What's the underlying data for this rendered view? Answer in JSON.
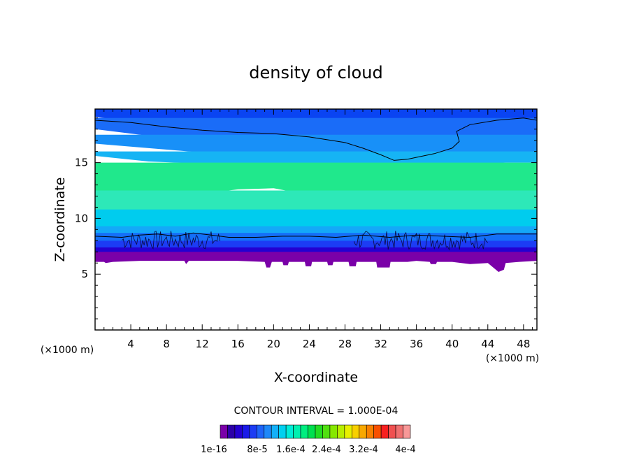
{
  "chart_data": {
    "type": "heatmap",
    "title": "density of cloud",
    "xlabel": "X-coordinate",
    "ylabel": "Z-coordinate",
    "x_units": "(×1000 m)",
    "x_units_right": "(×1000 m)",
    "xlim": [
      0,
      49.5
    ],
    "ylim": [
      0,
      19.8
    ],
    "x_ticks": [
      4,
      8,
      12,
      16,
      20,
      24,
      28,
      32,
      36,
      40,
      44,
      48
    ],
    "y_ticks": [
      5,
      10,
      15
    ],
    "contour_interval_label": "CONTOUR INTERVAL = 1.000E-04",
    "colorbar": {
      "colors": [
        "#7a00a8",
        "#2c00a8",
        "#2400d0",
        "#1a1ae8",
        "#1c3cf4",
        "#1e64f8",
        "#1e88f8",
        "#14b0f8",
        "#00d0f0",
        "#00ecd8",
        "#00f0b0",
        "#00ee80",
        "#00e050",
        "#22dc22",
        "#50e010",
        "#86e800",
        "#b8ee00",
        "#e8f000",
        "#f8d000",
        "#f8a800",
        "#f88000",
        "#f85000",
        "#f82020",
        "#f05050",
        "#f07070",
        "#f89898"
      ],
      "labels": [
        "1e-16",
        "8e-5",
        "1.6e-4",
        "2.4e-4",
        "3.2e-4",
        "4e-4"
      ]
    },
    "layers": [
      {
        "z_top": 20.0,
        "color": "#0a2ce8",
        "boundary": [
          [
            0,
            19.8
          ],
          [
            10,
            19.9
          ],
          [
            20,
            19.8
          ],
          [
            30,
            19.85
          ],
          [
            40,
            19.9
          ],
          [
            49.5,
            19.8
          ]
        ]
      },
      {
        "z_top": 19.8,
        "color": "#0a44f2",
        "boundary": [
          [
            0,
            19.1
          ],
          [
            6,
            18.5
          ],
          [
            12,
            17.8
          ],
          [
            18,
            17.4
          ],
          [
            24,
            17.2
          ],
          [
            28,
            17.0
          ],
          [
            31,
            16.6
          ],
          [
            33.5,
            16.1
          ],
          [
            36,
            16.2
          ],
          [
            39,
            16.6
          ],
          [
            40.5,
            17.1
          ],
          [
            40.5,
            18.1
          ],
          [
            44,
            18.6
          ],
          [
            49.5,
            18.8
          ]
        ]
      },
      {
        "z_top": 19.0,
        "color": "#1a6cf8",
        "boundary": [
          [
            0,
            18.0
          ],
          [
            6,
            17.4
          ],
          [
            12,
            16.9
          ],
          [
            18,
            16.7
          ],
          [
            22,
            16.3
          ],
          [
            26,
            15.8
          ],
          [
            30,
            15.2
          ],
          [
            33,
            14.9
          ],
          [
            37,
            15.2
          ],
          [
            41,
            16.3
          ],
          [
            45,
            16.8
          ],
          [
            49.5,
            17.0
          ]
        ]
      },
      {
        "z_top": 17.5,
        "color": "#1890f8",
        "boundary": [
          [
            0,
            16.7
          ],
          [
            6,
            16.3
          ],
          [
            12,
            15.9
          ],
          [
            18,
            15.7
          ],
          [
            22,
            15.4
          ],
          [
            24,
            14.6
          ],
          [
            26,
            14.3
          ],
          [
            30,
            14.2
          ],
          [
            34,
            14.3
          ],
          [
            38,
            14.6
          ],
          [
            42,
            15.2
          ],
          [
            46,
            15.4
          ],
          [
            49.5,
            15.5
          ]
        ]
      },
      {
        "z_top": 16.0,
        "color": "#16b4f4",
        "boundary": [
          [
            0,
            15.6
          ],
          [
            6,
            15.1
          ],
          [
            12,
            14.9
          ],
          [
            16,
            14.8
          ],
          [
            20,
            14.4
          ],
          [
            23,
            13.6
          ],
          [
            26,
            13.4
          ],
          [
            30,
            13.6
          ],
          [
            34,
            14.0
          ],
          [
            38,
            14.3
          ],
          [
            42,
            14.7
          ],
          [
            46,
            15.0
          ],
          [
            49.5,
            15.0
          ]
        ]
      },
      {
        "z_top": 15.0,
        "color": "#20e88c",
        "boundary": [
          [
            0,
            12.2
          ],
          [
            6,
            12.0
          ],
          [
            12,
            12.2
          ],
          [
            16,
            12.6
          ],
          [
            20,
            12.7
          ],
          [
            22,
            12.4
          ],
          [
            24,
            11.8
          ],
          [
            28,
            11.6
          ],
          [
            32,
            11.9
          ],
          [
            36,
            12.0
          ],
          [
            42,
            11.9
          ],
          [
            46,
            12.0
          ],
          [
            49.5,
            12.0
          ]
        ]
      },
      {
        "z_top": 12.5,
        "color": "#2de8b8",
        "boundary": [
          [
            0,
            10.8
          ],
          [
            6,
            10.5
          ],
          [
            12,
            10.4
          ],
          [
            18,
            10.2
          ],
          [
            22,
            10.1
          ],
          [
            26,
            10.0
          ],
          [
            30,
            10.0
          ],
          [
            34,
            10.1
          ],
          [
            38,
            10.2
          ],
          [
            42,
            10.4
          ],
          [
            46,
            10.5
          ],
          [
            49.5,
            10.6
          ]
        ]
      },
      {
        "z_top": 10.8,
        "color": "#00ccee",
        "boundary": [
          [
            0,
            9.2
          ],
          [
            6,
            9.0
          ],
          [
            12,
            8.9
          ],
          [
            18,
            8.8
          ],
          [
            24,
            8.8
          ],
          [
            30,
            8.7
          ],
          [
            36,
            8.8
          ],
          [
            42,
            8.8
          ],
          [
            49.5,
            8.9
          ]
        ]
      },
      {
        "z_top": 9.3,
        "color": "#14a8f8",
        "boundary": [
          [
            0,
            8.6
          ],
          [
            4,
            8.4
          ],
          [
            8,
            8.5
          ],
          [
            11,
            8.3
          ],
          [
            14,
            8.4
          ],
          [
            18,
            8.3
          ],
          [
            22,
            8.4
          ],
          [
            26,
            8.2
          ],
          [
            30,
            8.3
          ],
          [
            34,
            8.4
          ],
          [
            38,
            8.2
          ],
          [
            42,
            8.3
          ],
          [
            46,
            8.4
          ],
          [
            49.5,
            8.5
          ]
        ]
      },
      {
        "z_top": 8.7,
        "color": "#1470f8",
        "boundary": [
          [
            0,
            7.9
          ],
          [
            3,
            7.8
          ],
          [
            6,
            7.8
          ],
          [
            9,
            7.9
          ],
          [
            12,
            7.7
          ],
          [
            15,
            7.8
          ],
          [
            18,
            7.8
          ],
          [
            21,
            7.6
          ],
          [
            24,
            7.7
          ],
          [
            27,
            7.8
          ],
          [
            30,
            7.7
          ],
          [
            33,
            7.8
          ],
          [
            36,
            7.6
          ],
          [
            39,
            7.7
          ],
          [
            42,
            7.8
          ],
          [
            45,
            7.5
          ],
          [
            47,
            7.6
          ],
          [
            49.5,
            7.7
          ]
        ]
      },
      {
        "z_top": 8.0,
        "color": "#1c3cf4",
        "boundary": [
          [
            0,
            7.3
          ],
          [
            4,
            7.2
          ],
          [
            8,
            7.3
          ],
          [
            12,
            7.1
          ],
          [
            16,
            7.2
          ],
          [
            20,
            7.1
          ],
          [
            24,
            7.0
          ],
          [
            28,
            7.1
          ],
          [
            32,
            7.2
          ],
          [
            36,
            7.0
          ],
          [
            40,
            7.1
          ],
          [
            44,
            6.9
          ],
          [
            45.5,
            6.7
          ],
          [
            47,
            6.9
          ],
          [
            49.5,
            7.1
          ]
        ]
      },
      {
        "z_top": 7.4,
        "color": "#2400d0",
        "boundary": [
          [
            0,
            6.9
          ],
          [
            4,
            6.8
          ],
          [
            8,
            6.9
          ],
          [
            12,
            6.7
          ],
          [
            16,
            6.8
          ],
          [
            20,
            6.6
          ],
          [
            24,
            6.7
          ],
          [
            28,
            6.6
          ],
          [
            32,
            6.8
          ],
          [
            36,
            6.7
          ],
          [
            40,
            6.8
          ],
          [
            44,
            6.5
          ],
          [
            45.5,
            6.2
          ],
          [
            47,
            6.5
          ],
          [
            49.5,
            6.6
          ]
        ]
      },
      {
        "z_top": 7.0,
        "color": "#7a00a8",
        "boundary": [
          [
            0,
            6.1
          ],
          [
            1,
            6.1
          ],
          [
            1.2,
            6.0
          ],
          [
            2,
            6.1
          ],
          [
            5,
            6.2
          ],
          [
            10,
            6.2
          ],
          [
            10.2,
            5.9
          ],
          [
            10.5,
            6.2
          ],
          [
            13,
            6.2
          ],
          [
            16,
            6.2
          ],
          [
            19,
            6.1
          ],
          [
            19.2,
            5.6
          ],
          [
            19.6,
            5.6
          ],
          [
            19.8,
            6.1
          ],
          [
            21,
            6.1
          ],
          [
            21.1,
            5.8
          ],
          [
            21.6,
            5.8
          ],
          [
            21.7,
            6.1
          ],
          [
            23.5,
            6.1
          ],
          [
            23.6,
            5.7
          ],
          [
            24.2,
            5.7
          ],
          [
            24.3,
            6.1
          ],
          [
            26,
            6.1
          ],
          [
            26.1,
            5.8
          ],
          [
            26.6,
            5.8
          ],
          [
            26.7,
            6.1
          ],
          [
            28.4,
            6.1
          ],
          [
            28.5,
            5.7
          ],
          [
            29.2,
            5.7
          ],
          [
            29.3,
            6.1
          ],
          [
            31.5,
            6.1
          ],
          [
            31.6,
            5.6
          ],
          [
            33,
            5.6
          ],
          [
            33.1,
            6.1
          ],
          [
            35,
            6.1
          ],
          [
            36,
            6.2
          ],
          [
            37.5,
            6.1
          ],
          [
            37.6,
            5.9
          ],
          [
            38.2,
            5.9
          ],
          [
            38.3,
            6.1
          ],
          [
            40,
            6.1
          ],
          [
            42,
            5.9
          ],
          [
            44,
            6.0
          ],
          [
            45.2,
            5.2
          ],
          [
            45.8,
            5.4
          ],
          [
            46,
            6.0
          ],
          [
            47.5,
            6.1
          ],
          [
            49.5,
            6.2
          ]
        ]
      }
    ],
    "contours": [
      [
        [
          0,
          18.8
        ],
        [
          4,
          18.6
        ],
        [
          8,
          18.2
        ],
        [
          12,
          17.9
        ],
        [
          16,
          17.7
        ],
        [
          20,
          17.6
        ],
        [
          24,
          17.3
        ],
        [
          28,
          16.8
        ],
        [
          30,
          16.3
        ],
        [
          32,
          15.7
        ],
        [
          33.5,
          15.2
        ],
        [
          35,
          15.3
        ],
        [
          38,
          15.8
        ],
        [
          40,
          16.3
        ],
        [
          40.8,
          16.9
        ],
        [
          40.5,
          17.8
        ],
        [
          42,
          18.4
        ],
        [
          45,
          18.8
        ],
        [
          48,
          19.0
        ],
        [
          49.5,
          18.8
        ]
      ],
      [
        [
          0,
          8.4
        ],
        [
          3,
          8.3
        ],
        [
          5,
          8.5
        ],
        [
          7,
          8.6
        ],
        [
          9,
          8.4
        ],
        [
          11,
          8.7
        ],
        [
          13,
          8.5
        ],
        [
          15,
          8.3
        ],
        [
          18,
          8.3
        ],
        [
          21,
          8.4
        ],
        [
          24,
          8.4
        ],
        [
          27,
          8.3
        ],
        [
          30,
          8.5
        ],
        [
          33,
          8.3
        ],
        [
          36,
          8.5
        ],
        [
          39,
          8.4
        ],
        [
          42,
          8.3
        ],
        [
          45,
          8.6
        ],
        [
          49.5,
          8.6
        ]
      ]
    ],
    "noise_band": {
      "x_ranges": [
        [
          3,
          14
        ],
        [
          29,
          44
        ]
      ],
      "z_range": [
        7.2,
        8.9
      ]
    }
  }
}
